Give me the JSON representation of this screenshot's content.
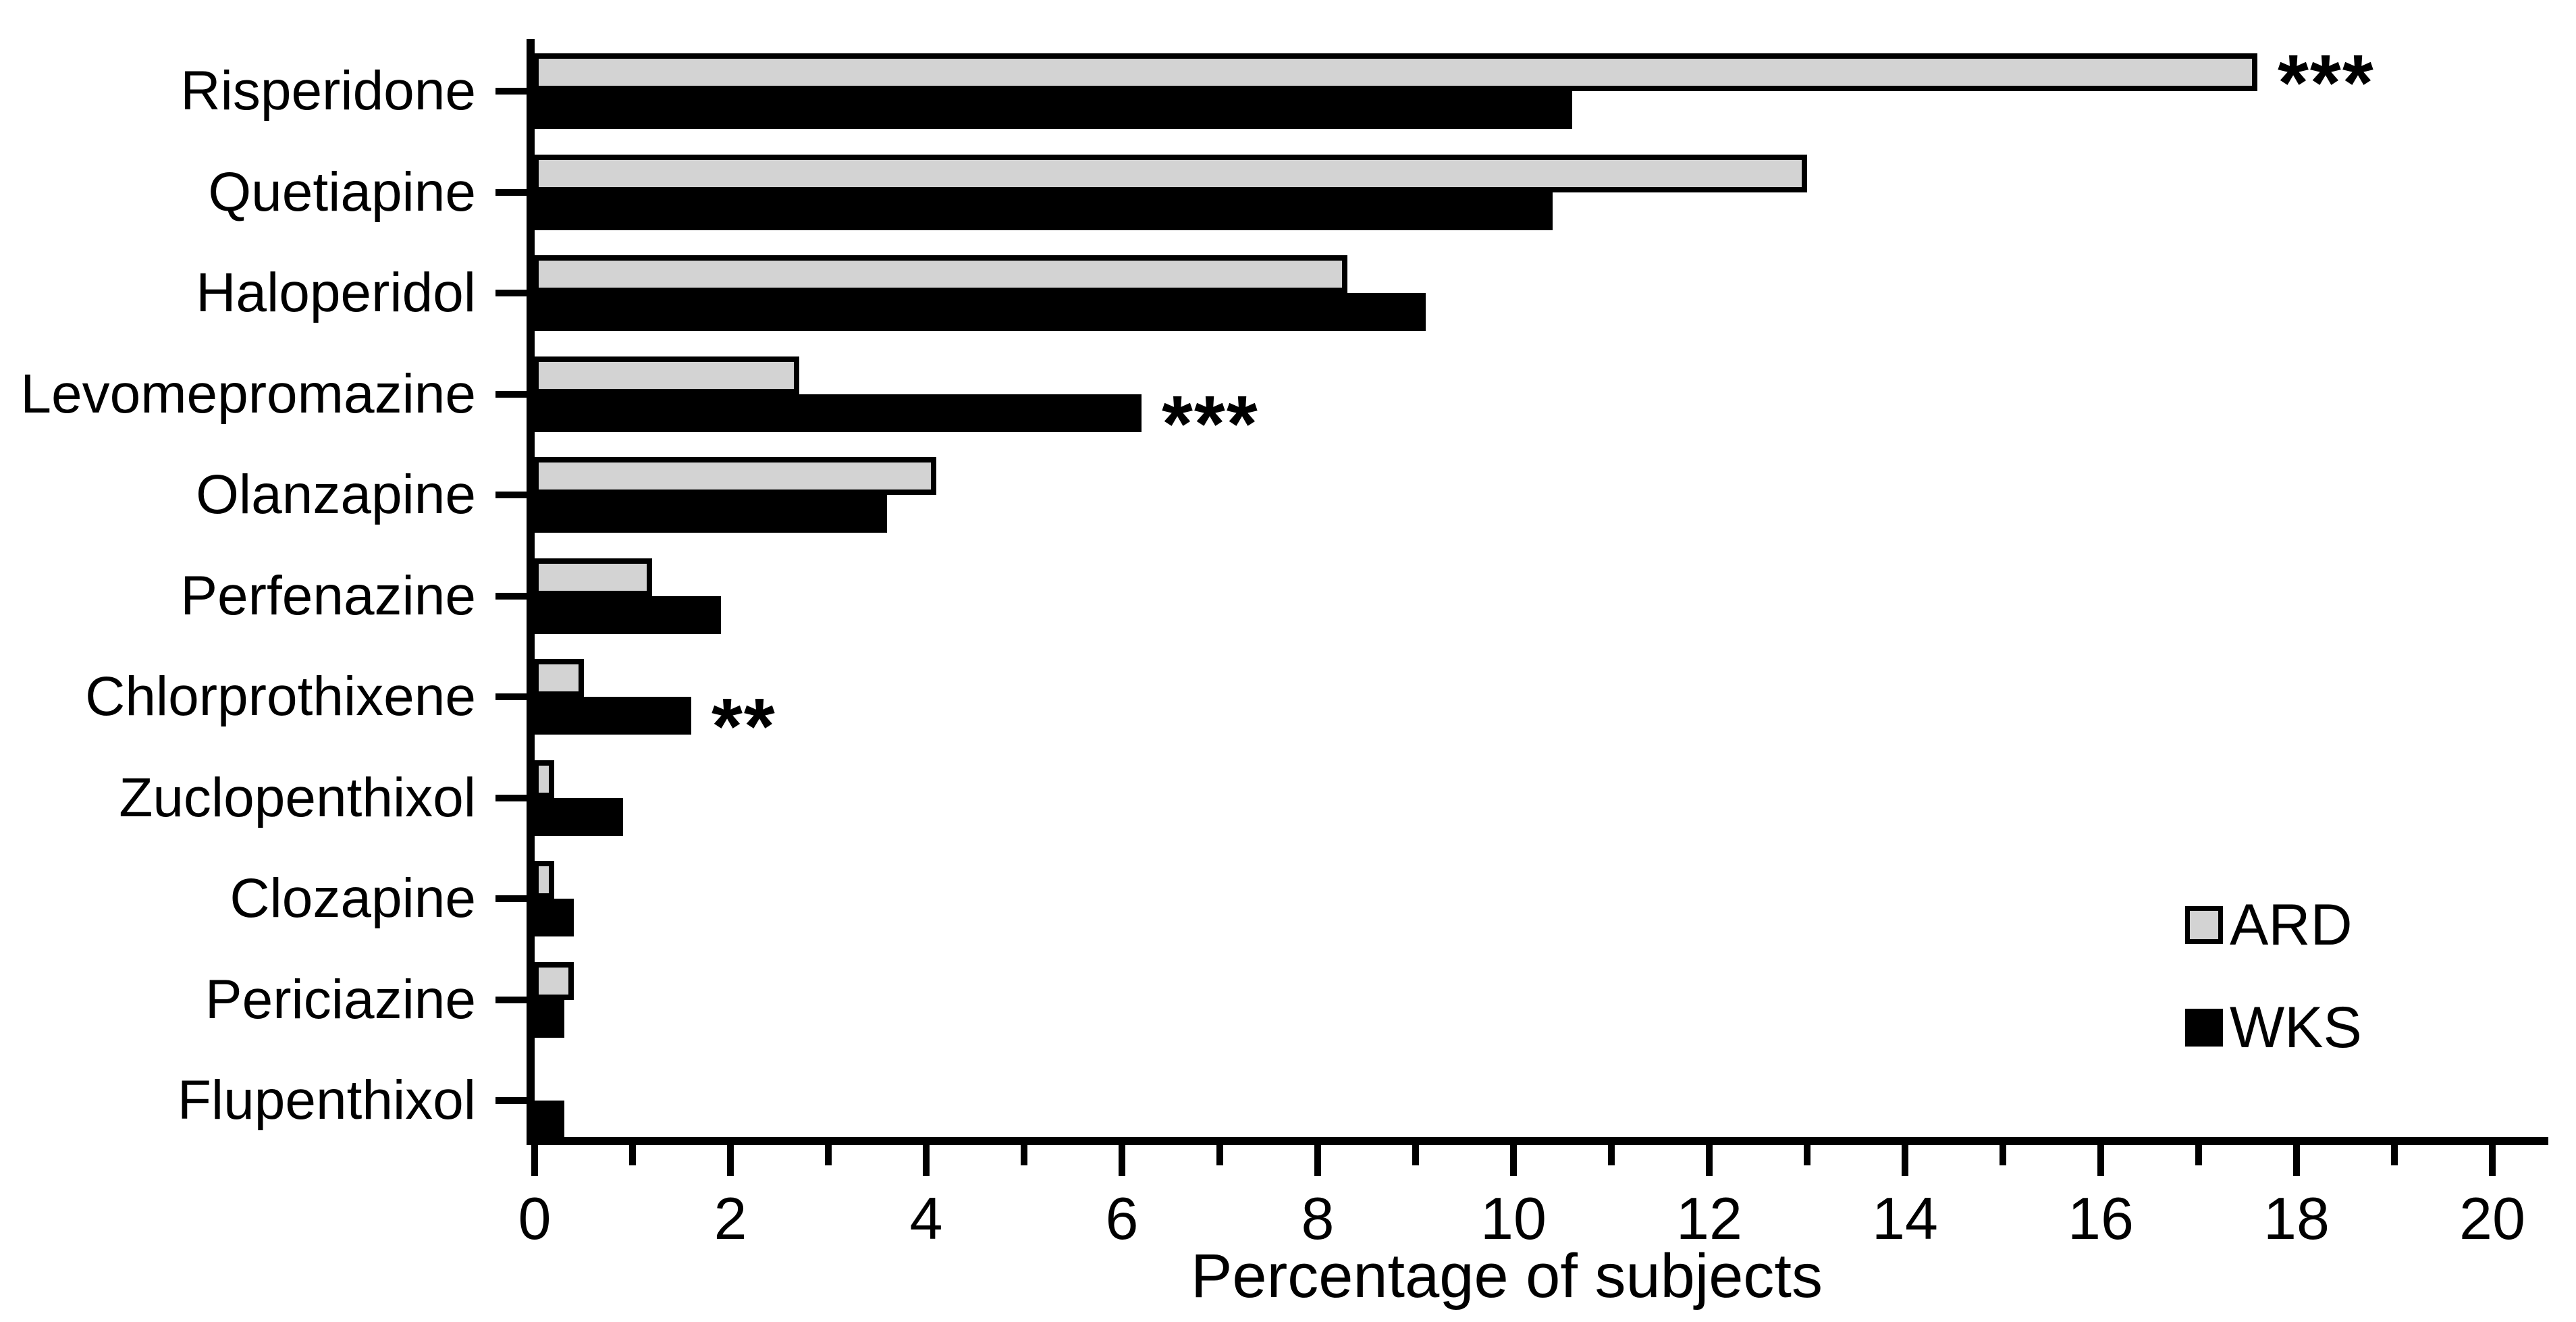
{
  "chart_data": {
    "type": "bar",
    "orientation": "horizontal",
    "title": "",
    "xlabel": "Percentage of subjects",
    "ylabel": "",
    "categories": [
      "Risperidone",
      "Quetiapine",
      "Haloperidol",
      "Levomepromazine",
      "Olanzapine",
      "Perfenazine",
      "Chlorprothixene",
      "Zuclopenthixol",
      "Clozapine",
      "Periciazine",
      "Flupenthixol"
    ],
    "series": [
      {
        "name": "ARD",
        "color": "#d3d3d3",
        "values": [
          17.6,
          13.0,
          8.3,
          2.7,
          4.1,
          1.2,
          0.5,
          0.2,
          0.2,
          0.4,
          0
        ]
      },
      {
        "name": "WKS",
        "color": "#000000",
        "values": [
          10.6,
          10.4,
          9.1,
          6.2,
          3.6,
          1.9,
          1.6,
          0.9,
          0.4,
          0.3,
          0.3
        ]
      }
    ],
    "xlim": [
      0,
      20
    ],
    "x_major_tick_step": 2,
    "x_minor_tick_step": 1,
    "x_tick_labels": [
      "0",
      "2",
      "4",
      "6",
      "8",
      "10",
      "12",
      "14",
      "16",
      "18",
      "20"
    ],
    "grid": false,
    "legend_position": "middle-right",
    "annotations": [
      {
        "category": "Risperidone",
        "series": "ARD",
        "text": "***"
      },
      {
        "category": "Levomepromazine",
        "series": "WKS",
        "text": "***"
      },
      {
        "category": "Chlorprothixene",
        "series": "WKS",
        "text": "**"
      }
    ]
  },
  "axis_title": "Percentage of subjects",
  "legend": {
    "items": [
      {
        "label": "ARD",
        "color": "#d3d3d3"
      },
      {
        "label": "WKS",
        "color": "#000000"
      }
    ]
  }
}
